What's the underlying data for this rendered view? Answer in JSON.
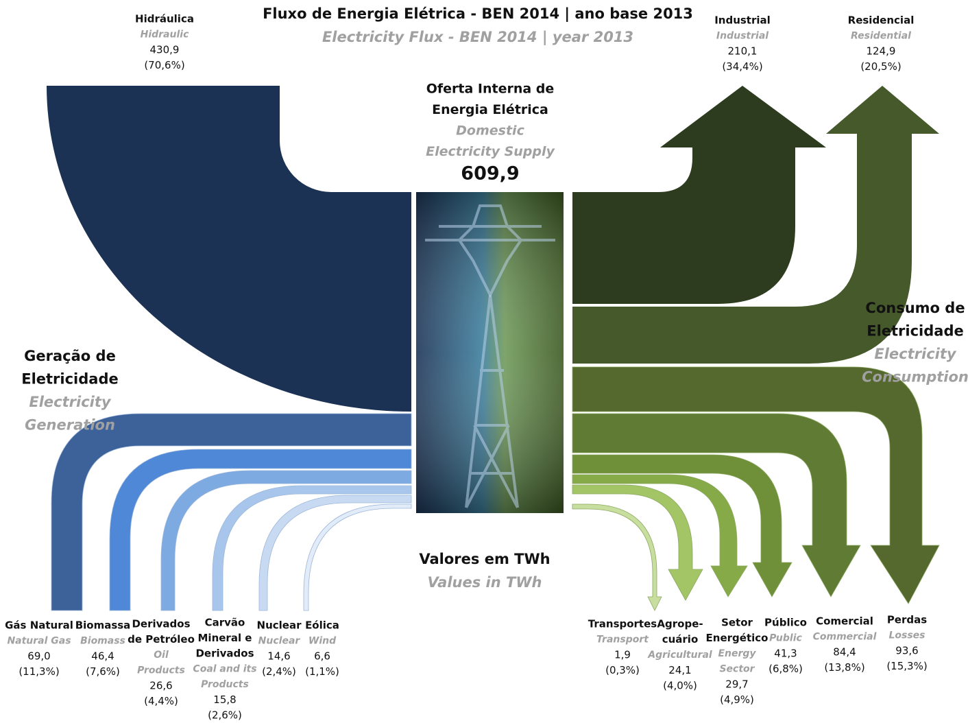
{
  "title": "Fluxo de Energia Elétrica - BEN 2014 | ano base 2013",
  "subtitle": "Electricity Flux - BEN 2014 | year 2013",
  "center": {
    "title": [
      "Oferta Interna de",
      "Energia Elétrica"
    ],
    "subtitle": [
      "Domestic",
      "Electricity Supply"
    ],
    "value": "609,9"
  },
  "generation": {
    "title": [
      "Geração de",
      "Eletricidade"
    ],
    "subtitle": [
      "Electricity",
      "Generation"
    ],
    "sources": [
      {
        "name": [
          "Hidráulica"
        ],
        "english": [
          "Hidraulic"
        ],
        "value": "430,9",
        "share": "(70,6%)"
      },
      {
        "name": [
          "Gás Natural"
        ],
        "english": [
          "Natural Gas"
        ],
        "value": "69,0",
        "share": "(11,3%)"
      },
      {
        "name": [
          "Biomassa"
        ],
        "english": [
          "Biomass"
        ],
        "value": "46,4",
        "share": "(7,6%)"
      },
      {
        "name": [
          "Derivados",
          "de Petróleo"
        ],
        "english": [
          "Oil",
          "Products"
        ],
        "value": "26,6",
        "share": "(4,4%)"
      },
      {
        "name": [
          "Carvão",
          "Mineral e",
          "Derivados"
        ],
        "english": [
          "Coal and its",
          "Products"
        ],
        "value": "15,8",
        "share": "(2,6%)"
      },
      {
        "name": [
          "Nuclear"
        ],
        "english": [
          "Nuclear"
        ],
        "value": "14,6",
        "share": "(2,4%)"
      },
      {
        "name": [
          "Eólica"
        ],
        "english": [
          "Wind"
        ],
        "value": "6,6",
        "share": "(1,1%)"
      }
    ]
  },
  "consumption": {
    "title": [
      "Consumo de",
      "Eletricidade"
    ],
    "subtitle": [
      "Electricity",
      "Consumption"
    ],
    "sectors": [
      {
        "name": [
          "Industrial"
        ],
        "english": [
          "Industrial"
        ],
        "value": "210,1",
        "share": "(34,4%)"
      },
      {
        "name": [
          "Residencial"
        ],
        "english": [
          "Residential"
        ],
        "value": "124,9",
        "share": "(20,5%)"
      },
      {
        "name": [
          "Perdas"
        ],
        "english": [
          "Losses"
        ],
        "value": "93,6",
        "share": "(15,3%)"
      },
      {
        "name": [
          "Comercial"
        ],
        "english": [
          "Commercial"
        ],
        "value": "84,4",
        "share": "(13,8%)"
      },
      {
        "name": [
          "Público"
        ],
        "english": [
          "Public"
        ],
        "value": "41,3",
        "share": "(6,8%)"
      },
      {
        "name": [
          "Setor",
          "Energético"
        ],
        "english": [
          "Energy",
          "Sector"
        ],
        "value": "29,7",
        "share": "(4,9%)"
      },
      {
        "name": [
          "Agrope-",
          "cuário"
        ],
        "english": [
          "Agricultural"
        ],
        "value": "24,1",
        "share": "(4,0%)"
      },
      {
        "name": [
          "Transportes"
        ],
        "english": [
          "Transport"
        ],
        "value": "1,9",
        "share": "(0,3%)"
      }
    ]
  },
  "units": {
    "label": "Valores em TWh",
    "sublabel": "Values in TWh"
  }
}
